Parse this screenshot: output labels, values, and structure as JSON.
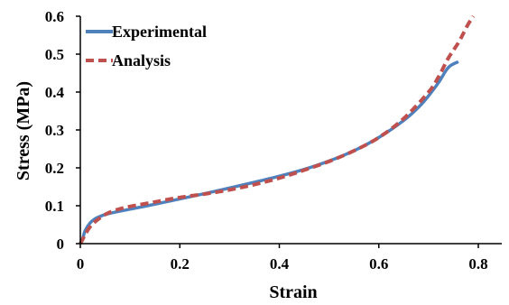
{
  "chart_data": {
    "type": "line",
    "title": "",
    "xlabel": "Strain",
    "ylabel": "Stress (MPa)",
    "xlim": [
      0,
      0.8
    ],
    "ylim": [
      0,
      0.6
    ],
    "xticks": [
      0,
      0.2,
      0.4,
      0.6,
      0.8
    ],
    "xtick_labels": [
      "0",
      "0.2",
      "0.4",
      "0.6",
      "0.8"
    ],
    "yticks": [
      0,
      0.1,
      0.2,
      0.3,
      0.4,
      0.5,
      0.6
    ],
    "ytick_labels": [
      "0",
      "0.1",
      "0.2",
      "0.3",
      "0.4",
      "0.5",
      "0.6"
    ],
    "grid": false,
    "legend_position": "top-left",
    "series": [
      {
        "name": "Experimental",
        "color": "#4f81bd",
        "style": "solid",
        "x": [
          0,
          0.005,
          0.01,
          0.02,
          0.03,
          0.04,
          0.05,
          0.07,
          0.1,
          0.15,
          0.2,
          0.25,
          0.3,
          0.35,
          0.4,
          0.45,
          0.5,
          0.55,
          0.6,
          0.65,
          0.68,
          0.7,
          0.72,
          0.74,
          0.76
        ],
        "y": [
          0,
          0.015,
          0.035,
          0.055,
          0.066,
          0.072,
          0.077,
          0.083,
          0.091,
          0.104,
          0.118,
          0.132,
          0.147,
          0.162,
          0.178,
          0.196,
          0.218,
          0.245,
          0.28,
          0.325,
          0.36,
          0.39,
          0.425,
          0.465,
          0.48
        ]
      },
      {
        "name": "Analysis",
        "color": "#c0504d",
        "style": "dashed",
        "x": [
          0,
          0.005,
          0.01,
          0.02,
          0.03,
          0.04,
          0.05,
          0.07,
          0.1,
          0.15,
          0.2,
          0.25,
          0.3,
          0.35,
          0.4,
          0.45,
          0.5,
          0.55,
          0.6,
          0.65,
          0.7,
          0.72,
          0.74,
          0.76,
          0.77,
          0.78,
          0.79
        ],
        "y": [
          0,
          0.012,
          0.025,
          0.045,
          0.058,
          0.068,
          0.077,
          0.088,
          0.098,
          0.11,
          0.122,
          0.131,
          0.142,
          0.156,
          0.173,
          0.194,
          0.217,
          0.245,
          0.28,
          0.33,
          0.4,
          0.44,
          0.49,
          0.53,
          0.555,
          0.58,
          0.6
        ]
      }
    ]
  }
}
